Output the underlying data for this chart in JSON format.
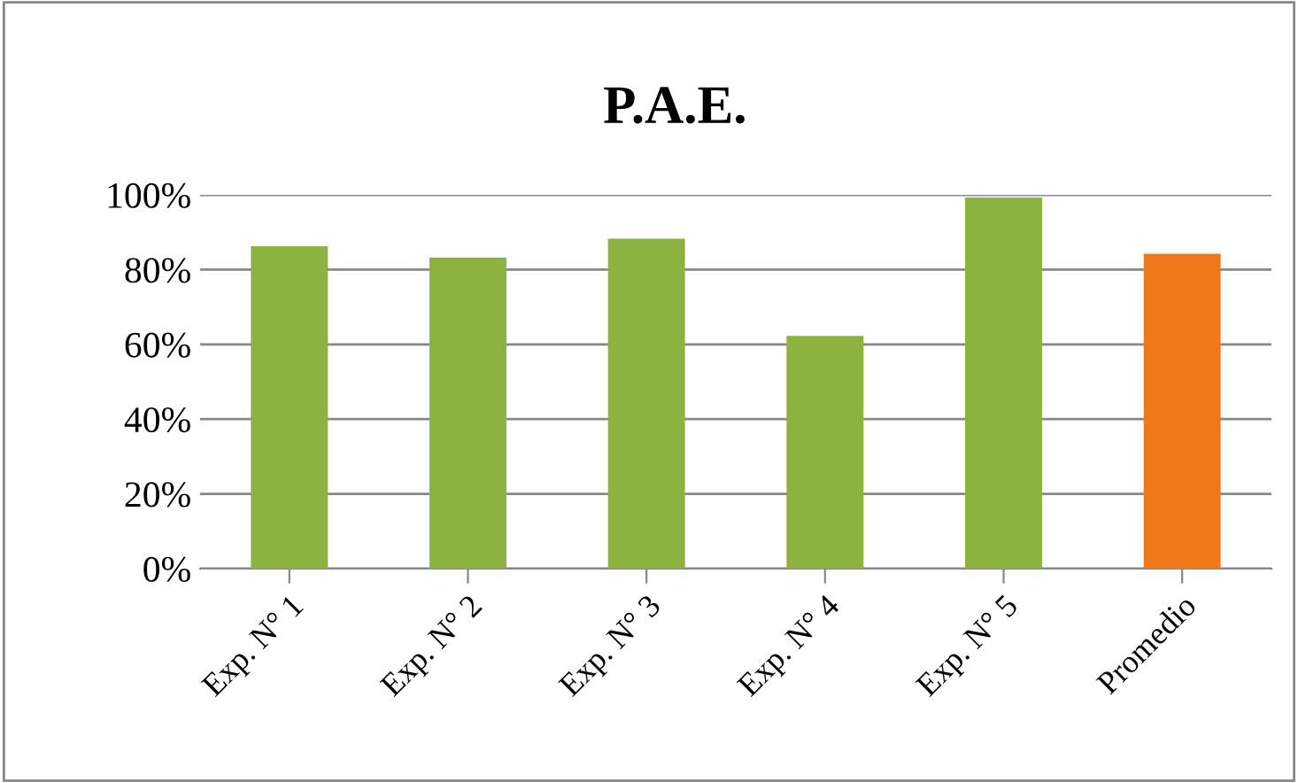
{
  "chart_data": {
    "type": "bar",
    "title": "P.A.E.",
    "categories": [
      "Exp. N° 1",
      "Exp. N° 2",
      "Exp. N° 3",
      "Exp. N° 4",
      "Exp. N° 5",
      "Promedio"
    ],
    "values": [
      86,
      83,
      88,
      62,
      99,
      84
    ],
    "colors": [
      "#8cb33f",
      "#8cb33f",
      "#8cb33f",
      "#8cb33f",
      "#8cb33f",
      "#f07818"
    ],
    "ylim": [
      0,
      100
    ],
    "yticks": [
      {
        "value": 0,
        "label": "0%"
      },
      {
        "value": 20,
        "label": "20%"
      },
      {
        "value": 40,
        "label": "40%"
      },
      {
        "value": 60,
        "label": "60%"
      },
      {
        "value": 80,
        "label": "80%"
      },
      {
        "value": 100,
        "label": "100%"
      }
    ],
    "grid": "y",
    "legend": false
  }
}
